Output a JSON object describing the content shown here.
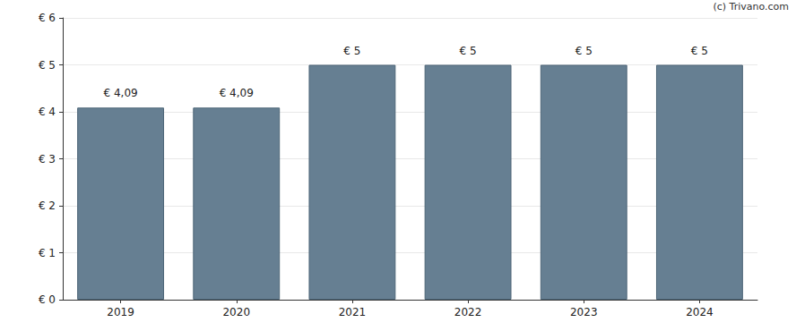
{
  "chart_data": {
    "type": "bar",
    "categories": [
      "2019",
      "2020",
      "2021",
      "2022",
      "2023",
      "2024"
    ],
    "values": [
      4.09,
      4.09,
      5,
      5,
      5,
      5
    ],
    "value_labels": [
      "€ 4,09",
      "€ 4,09",
      "€ 5",
      "€ 5",
      "€ 5",
      "€ 5"
    ],
    "data_labels": true,
    "color": "#667f92",
    "ylim": [
      0,
      6
    ],
    "yticks": [
      {
        "value": 0,
        "label": "€ 0"
      },
      {
        "value": 1,
        "label": "€ 1"
      },
      {
        "value": 2,
        "label": "€ 2"
      },
      {
        "value": 3,
        "label": "€ 3"
      },
      {
        "value": 4,
        "label": "€ 4"
      },
      {
        "value": 5,
        "label": "€ 5"
      },
      {
        "value": 6,
        "label": "€ 6"
      }
    ],
    "grid": true,
    "annotations": [
      "(c) Trivano.com"
    ]
  }
}
